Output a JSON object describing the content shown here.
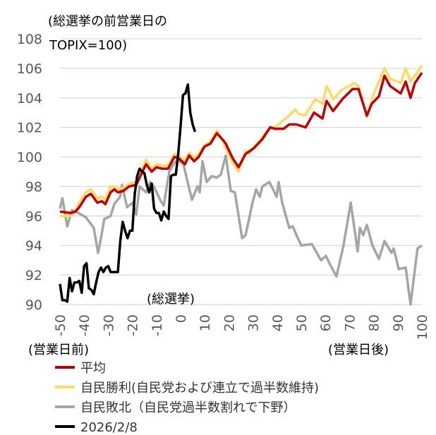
{
  "chart_data": {
    "type": "line",
    "title": "",
    "ylabel": "(総選挙の前営業日の TOPIX=100)",
    "ylabel_line1": "(総選挙の前営業日の",
    "ylabel_line2": "TOPIX=100)",
    "xlabel_left": "(営業日前)",
    "xlabel_right": "(営業日後)",
    "annotation": "(総選挙)",
    "xlim": [
      -50,
      100
    ],
    "ylim": [
      90,
      108
    ],
    "xticks": [
      "-50",
      "-40",
      "-30",
      "-20",
      "-10",
      "0",
      "10",
      "20",
      "30",
      "40",
      "50",
      "60",
      "70",
      "80",
      "90",
      "100"
    ],
    "yticks": [
      "90",
      "92",
      "94",
      "96",
      "98",
      "100",
      "102",
      "104",
      "106",
      "108"
    ],
    "grid": "horizontal",
    "legend_position": "bottom-left",
    "series": [
      {
        "name": "平均",
        "color": "#c00000",
        "x": [
          -50,
          -45.5,
          -43.6,
          -42,
          -39.2,
          -37.2,
          -34.5,
          -32.6,
          -31.2,
          -29,
          -27.5,
          -26,
          -23.7,
          -21.3,
          -18.4,
          -16.4,
          -14.3,
          -12,
          -10,
          -7.6,
          -5.2,
          -2.6,
          -0.7,
          1.8,
          3.5,
          5.6,
          7.5,
          9.9,
          12.4,
          15,
          17.8,
          18.7,
          21.6,
          24,
          26.9,
          30.4,
          33.9,
          37.1,
          39.2,
          42.7,
          45,
          48,
          51.8,
          55.3,
          58.8,
          60.5,
          63.2,
          67,
          71.3,
          73.7,
          77.2,
          79.2,
          82.2,
          84.5,
          86.8,
          91.2,
          93.3,
          95.3,
          97.1,
          100
        ],
        "y": [
          96.3,
          96.2,
          96.3,
          96.6,
          97.3,
          97.5,
          96.9,
          97.0,
          96.8,
          97.6,
          97.8,
          97.6,
          97.7,
          98.0,
          98.1,
          98.8,
          99.5,
          99.0,
          99.3,
          99.2,
          99.2,
          100.0,
          99.9,
          99.5,
          100.1,
          99.7,
          100.0,
          100.7,
          100.9,
          101.6,
          101.1,
          100.9,
          99.9,
          99.3,
          100.2,
          100.6,
          101.2,
          102.0,
          101.9,
          101.9,
          102.2,
          102.2,
          102.0,
          103.0,
          102.6,
          103.8,
          103.1,
          103.9,
          104.6,
          104.6,
          102.8,
          103.6,
          104.1,
          105.5,
          104.8,
          104.3,
          105.1,
          104.0,
          105.0,
          105.7
        ]
      },
      {
        "name": "自民勝利(自民党および連立で過半数維持)",
        "color": "#ffd966",
        "x": [
          -50,
          -45.5,
          -43.6,
          -42,
          -39.2,
          -37.2,
          -34.5,
          -32.6,
          -31.2,
          -29,
          -27.5,
          -26,
          -23.7,
          -21.3,
          -18.4,
          -16.4,
          -14.3,
          -12,
          -10,
          -7.6,
          -5.2,
          -2.6,
          -0.7,
          1.8,
          3.5,
          5.6,
          7.5,
          9.9,
          12.4,
          15,
          17.8,
          18.7,
          21.6,
          24,
          26.9,
          28.5,
          30.4,
          33.9,
          37.1,
          39.2,
          42.7,
          45,
          47.4,
          49,
          51.5,
          55.8,
          58.8,
          60.5,
          63.4,
          66.4,
          72,
          73.7,
          77.2,
          80.1,
          84.5,
          86.8,
          91.2,
          93.3,
          95.3,
          97.1,
          100
        ],
        "y": [
          96.0,
          96.0,
          96.3,
          96.9,
          97.6,
          97.8,
          97.2,
          97.3,
          97.1,
          98.0,
          98.0,
          97.8,
          97.9,
          98.2,
          98.3,
          99.0,
          99.8,
          99.2,
          99.5,
          99.4,
          99.4,
          100.2,
          100.1,
          99.7,
          100.3,
          99.9,
          100.2,
          100.8,
          101.0,
          101.8,
          101.0,
          100.6,
          99.6,
          99.0,
          100.4,
          100.2,
          100.7,
          101.3,
          102.0,
          102.0,
          102.5,
          102.8,
          103.2,
          102.9,
          102.8,
          103.9,
          103.6,
          104.8,
          103.9,
          104.5,
          105.0,
          104.8,
          102.7,
          104.3,
          106.0,
          105.3,
          105.0,
          106.0,
          105.1,
          105.5,
          106.2
        ]
      },
      {
        "name": "自民敗北（自民党過半数割れで下野）",
        "color": "#a5a5a5",
        "x": [
          -50,
          -49,
          -47,
          -45,
          -41.2,
          -39.2,
          -36,
          -34.2,
          -33,
          -31.6,
          -29,
          -27.5,
          -25.1,
          -24.3,
          -22.2,
          -19.9,
          -18.4,
          -17,
          -14.3,
          -12.6,
          -11.1,
          -8.5,
          -7,
          -4.7,
          -2.6,
          -1.2,
          1.2,
          2.6,
          4.7,
          7,
          7.9,
          9.1,
          10.8,
          12.9,
          14.9,
          16.7,
          18.7,
          20.8,
          22.5,
          25.5,
          26.9,
          28.4,
          29.8,
          31.3,
          32.8,
          33.9,
          36.8,
          39.8,
          40.6,
          42.1,
          45,
          46.5,
          48,
          50,
          54.4,
          58.2,
          60.2,
          61.7,
          64.6,
          67.5,
          70.5,
          73.4,
          74.3,
          75.7,
          77.2,
          79.5,
          82.2,
          84.5,
          87.4,
          88.3,
          90.4,
          93.3,
          95.3,
          98.2,
          100
        ],
        "y": [
          96.5,
          97.2,
          95.3,
          96.4,
          96.1,
          95.9,
          95.2,
          93.5,
          94.5,
          95.8,
          96.0,
          96.8,
          97.3,
          98.1,
          96.6,
          96.9,
          96.1,
          98.0,
          97.6,
          98.3,
          98.0,
          97.1,
          96.7,
          99.0,
          99.6,
          99.8,
          99.5,
          98.5,
          97.1,
          98.0,
          97.6,
          99.7,
          98.3,
          98.7,
          98.6,
          98.8,
          100.1,
          97.7,
          97.6,
          94.5,
          94.7,
          95.8,
          96.9,
          97.8,
          97.3,
          98.0,
          98.3,
          97.3,
          98.3,
          96.9,
          95.2,
          95.3,
          94.7,
          94.0,
          94.1,
          93.0,
          93.3,
          92.8,
          91.9,
          94.0,
          96.9,
          93.6,
          95.2,
          94.7,
          95.4,
          94.0,
          93.1,
          94.3,
          93.5,
          93.8,
          92.4,
          92.5,
          90.0,
          93.8,
          94.0
        ]
      },
      {
        "name": "2026/2/8",
        "color": "#000000",
        "x": [
          -50,
          -49,
          -48,
          -47,
          -46,
          -45,
          -44,
          -43,
          -42,
          -41,
          -40,
          -39,
          -38,
          -37,
          -36,
          -35,
          -34,
          -33,
          -32,
          -31,
          -30,
          -29,
          -28,
          -27,
          -26,
          -25,
          -24,
          -23,
          -22,
          -21,
          -20,
          -19,
          -18,
          -17,
          -16,
          -15,
          -14,
          -13,
          -12,
          -11,
          -10,
          -9,
          -8,
          -7,
          -6,
          -5,
          -4,
          -3,
          -2,
          -1,
          0,
          1,
          2,
          3,
          4,
          5,
          6
        ],
        "y": [
          91.4,
          90.3,
          90.3,
          90.2,
          91.8,
          90.9,
          91.5,
          91.5,
          91.6,
          90.8,
          92.6,
          92.8,
          91.1,
          91.0,
          90.7,
          91.5,
          92.2,
          92.5,
          92.2,
          92.5,
          92.6,
          92.2,
          92.2,
          92.2,
          92.2,
          94.3,
          95.6,
          95.0,
          94.5,
          95.0,
          95.0,
          97.5,
          98.7,
          99.2,
          99.0,
          98.9,
          98.1,
          97.6,
          98.2,
          96.5,
          96.2,
          96.2,
          95.7,
          96.3,
          96.0,
          95.8,
          98.7,
          98.8,
          98.8,
          100.2,
          102.1,
          104.2,
          104.3,
          104.9,
          103.0,
          102.2,
          101.7
        ]
      }
    ]
  }
}
